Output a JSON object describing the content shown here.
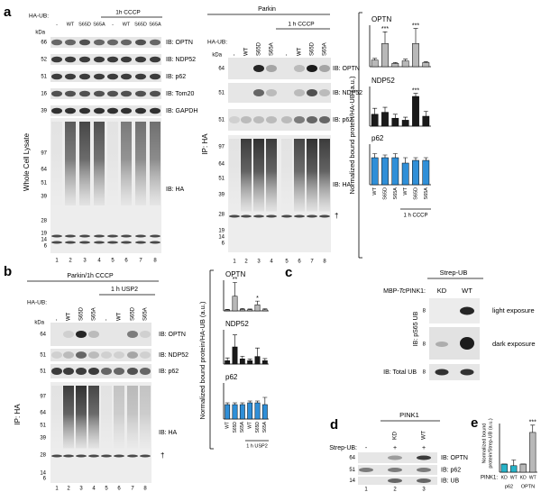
{
  "panel_a": {
    "letter": "a",
    "lysate": {
      "header": "1h CCCP",
      "ha_ub": "HA-UB:",
      "lanes": [
        "-",
        "WT",
        "S65D",
        "S65A",
        "-",
        "WT",
        "S65D",
        "S65A"
      ],
      "kda": "kDa",
      "side_label": "Whole Cell Lysate",
      "rows": [
        {
          "label": "IB: OPTN",
          "markers": [
            66
          ]
        },
        {
          "label": "IB: NDP52",
          "markers": [
            52
          ]
        },
        {
          "label": "IB: p62",
          "markers": [
            51
          ]
        },
        {
          "label": "IB: Tom20",
          "markers": [
            16
          ]
        },
        {
          "label": "IB: GAPDH",
          "markers": [
            39
          ]
        }
      ],
      "ha_label": "IB: HA",
      "ha_markers": [
        97,
        64,
        51,
        39,
        28,
        19,
        14,
        6
      ],
      "lane_numbers": [
        1,
        2,
        3,
        4,
        5,
        6,
        7,
        8
      ]
    },
    "ip": {
      "header": "Parkin",
      "sub_header": "1 h CCCP",
      "ha_ub": "HA-UB:",
      "lanes": [
        "-",
        "WT",
        "S65D",
        "S65A",
        "-",
        "WT",
        "S65D",
        "S65A"
      ],
      "kda": "kDa",
      "side_label": "IP: HA",
      "rows": [
        {
          "label": "IB: OPTN",
          "markers": [
            64
          ]
        },
        {
          "label": "IB: NDP52",
          "markers": [
            51
          ]
        },
        {
          "label": "IB: p62",
          "markers": [
            51
          ]
        }
      ],
      "ha_label": "IB: HA",
      "ha_markers": [
        97,
        64,
        51,
        39,
        28,
        19,
        14,
        6
      ],
      "dagger": "†",
      "lane_numbers": [
        1,
        2,
        3,
        4,
        5,
        6,
        7,
        8
      ]
    },
    "chart": {
      "type": "bar",
      "y_label": "Normalized bound protein/HA-UB (a.u.)",
      "categories": [
        "WT",
        "S65D",
        "S65A",
        "WT",
        "S65D",
        "S65A"
      ],
      "group_label": "1 h CCCP",
      "subplots": [
        {
          "title": "OPTN",
          "color": "#b8b8b8",
          "values": [
            8,
            28,
            4,
            7,
            28,
            5
          ],
          "errors": [
            2,
            14,
            1,
            2,
            18,
            1
          ],
          "ylim": [
            0,
            50
          ],
          "annotations": [
            "***",
            "***"
          ]
        },
        {
          "title": "NDP52",
          "color": "#1a1a1a",
          "values": [
            12,
            14,
            8,
            6,
            30,
            10
          ],
          "errors": [
            6,
            5,
            4,
            3,
            3,
            5
          ],
          "ylim": [
            0,
            40
          ],
          "annotations": [
            "***"
          ]
        },
        {
          "title": "p62",
          "color": "#2f8fd8",
          "values": [
            10,
            10,
            10,
            8,
            9,
            9
          ],
          "errors": [
            1.5,
            1,
            1.5,
            2,
            1,
            1
          ],
          "ylim": [
            0,
            15
          ]
        }
      ]
    }
  },
  "panel_b": {
    "letter": "b",
    "blot": {
      "header": "Parkin/1h CCCP",
      "sub_header": "1 h USP2",
      "ha_ub": "HA-UB:",
      "lanes": [
        "-",
        "WT",
        "S65D",
        "S65A",
        "-",
        "WT",
        "S65D",
        "S65A"
      ],
      "kda": "kDa",
      "side_label": "IP: HA",
      "rows": [
        {
          "label": "IB: OPTN",
          "markers": [
            64
          ]
        },
        {
          "label": "IB: NDP52",
          "markers": [
            51
          ]
        },
        {
          "label": "IB: p62",
          "markers": [
            51
          ]
        }
      ],
      "ha_label": "IB: HA",
      "ha_markers": [
        97,
        64,
        51,
        39,
        28,
        14,
        6
      ],
      "dagger": "†",
      "lane_numbers": [
        1,
        2,
        3,
        4,
        5,
        6,
        7,
        8
      ]
    },
    "chart": {
      "type": "bar",
      "y_label": "Normalized bound protein/HA-UB (a.u.)",
      "categories": [
        "WT",
        "S65D",
        "S65A",
        "WT",
        "S65D",
        "S65A"
      ],
      "group_label": "1 h USP2",
      "subplots": [
        {
          "title": "OPTN",
          "color": "#b8b8b8",
          "values": [
            3,
            48,
            5,
            4,
            20,
            4
          ],
          "errors": [
            2,
            45,
            3,
            2,
            12,
            3
          ],
          "ylim": [
            0,
            100
          ],
          "annotations": [
            "**",
            "*"
          ]
        },
        {
          "title": "NDP52",
          "color": "#1a1a1a",
          "values": [
            10,
            50,
            15,
            10,
            22,
            10
          ],
          "errors": [
            8,
            35,
            8,
            5,
            25,
            6
          ],
          "ylim": [
            0,
            100
          ]
        },
        {
          "title": "p62",
          "color": "#2f8fd8",
          "values": [
            8,
            8,
            8,
            9,
            9,
            8
          ],
          "errors": [
            1,
            1,
            1,
            1,
            1,
            4
          ],
          "ylim": [
            0,
            20
          ]
        }
      ]
    }
  },
  "panel_c": {
    "letter": "c",
    "header": "Strep-UB",
    "pink1_label": [
      "MBP-",
      "Tc",
      "PINK1:"
    ],
    "lanes": [
      "KD",
      "WT"
    ],
    "side_label": "IB: pS65 UB",
    "exposures": [
      "light exposure",
      "dark exposure"
    ],
    "total_label": "IB: Total UB",
    "markers": [
      8,
      8,
      8
    ]
  },
  "panel_d": {
    "letter": "d",
    "header": "PINK1",
    "lanes": [
      "KD",
      "WT"
    ],
    "strep_label": "Strep-UB:",
    "strep_lanes": [
      "-",
      "+",
      "+"
    ],
    "rows": [
      {
        "label": "IB: OPTN",
        "markers": [
          64
        ]
      },
      {
        "label": "IB: p62",
        "markers": [
          51
        ]
      },
      {
        "label": "IB: UB",
        "markers": [
          14
        ]
      }
    ],
    "lane_numbers": [
      1,
      2,
      3
    ]
  },
  "panel_e": {
    "letter": "e",
    "chart": {
      "type": "bar",
      "y_label": [
        "Normalized bound",
        "protein/Strep-UB (a.u.)"
      ],
      "x_label": "PINK1:",
      "categories": [
        "KD",
        "WT",
        "KD",
        "WT"
      ],
      "groups": [
        "p62",
        "OPTN"
      ],
      "colors": [
        "#27b3c8",
        "#27b3c8",
        "#b8b8b8",
        "#b8b8b8"
      ],
      "values": [
        100,
        80,
        100,
        490
      ],
      "errors": [
        0,
        70,
        0,
        90
      ],
      "ylim": [
        0,
        600
      ],
      "annotations": [
        "***"
      ]
    }
  }
}
